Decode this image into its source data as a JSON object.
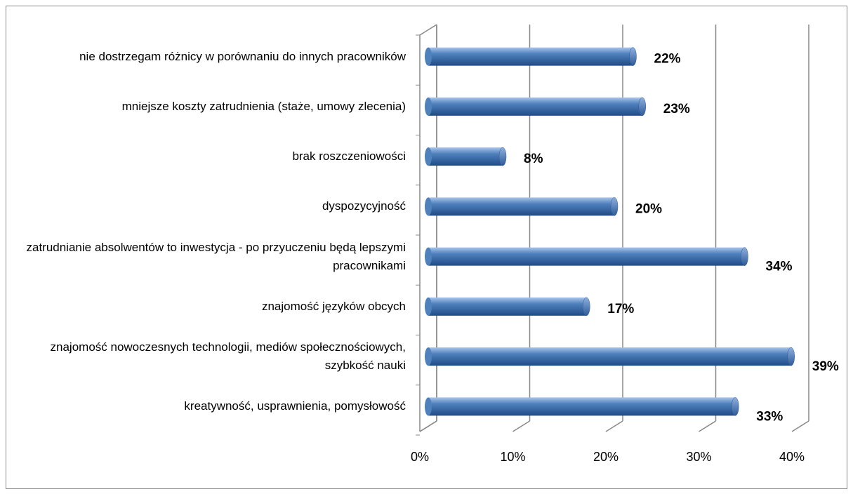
{
  "chart_data": {
    "type": "bar",
    "orientation": "horizontal",
    "categories": [
      "nie dostrzegam różnicy w porównaniu do innych pracowników",
      "mniejsze koszty zatrudnienia (staże, umowy zlecenia)",
      "brak roszczeniowości",
      "dyspozycyjność",
      "zatrudnianie absolwentów to inwestycja - po przyuczeniu będą lepszymi pracownikami",
      "znajomość języków obcych",
      "znajomość nowoczesnych technologii, mediów społecznościowych, szybkość nauki",
      "kreatywność, usprawnienia, pomysłowość"
    ],
    "values": [
      22,
      23,
      8,
      20,
      34,
      17,
      39,
      33
    ],
    "value_labels": [
      "22%",
      "23%",
      "8%",
      "20%",
      "34%",
      "17%",
      "39%",
      "33%"
    ],
    "color": "#4f81bd",
    "xlim": [
      0,
      40
    ],
    "xticks": [
      {
        "value": 0,
        "label": "0%"
      },
      {
        "value": 10,
        "label": "10%"
      },
      {
        "value": 20,
        "label": "20%"
      },
      {
        "value": 30,
        "label": "30%"
      },
      {
        "value": 40,
        "label": "40%"
      }
    ],
    "grid": true
  }
}
